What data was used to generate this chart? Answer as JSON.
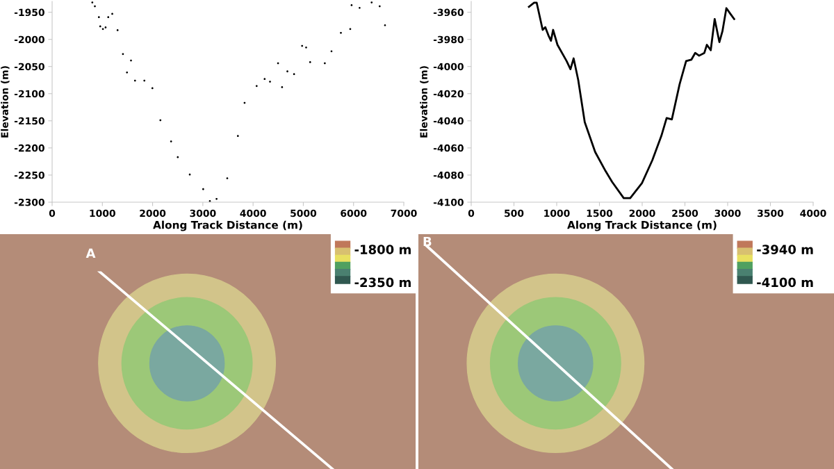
{
  "chart_data": [
    {
      "type": "scatter",
      "xlabel": "Along Track Distance (m)",
      "ylabel": "Elevation (m)",
      "marker": "circle",
      "grid": false,
      "legend": false,
      "xlim": [
        0,
        7000
      ],
      "xticks": [
        0,
        1000,
        2000,
        3000,
        4000,
        5000,
        6000,
        7000
      ],
      "ylim": [
        -2300,
        -1930
      ],
      "yticks": [
        -2300,
        -2250,
        -2200,
        -2150,
        -2100,
        -2050,
        -2000,
        -1950
      ],
      "series": [
        {
          "color": "#000000",
          "x": [
            800,
            851,
            931,
            958,
            1011,
            1064,
            1117,
            1197,
            1303,
            1410,
            1490,
            1570,
            1650,
            1836,
            1996,
            2155,
            2368,
            2501,
            2740,
            3007,
            3140,
            3273,
            3486,
            3698,
            3831,
            4071,
            4230,
            4337,
            4497,
            4577,
            4683,
            4816,
            4976,
            5056,
            5136,
            5428,
            5561,
            5748,
            5934,
            5961,
            6120,
            6360,
            6520,
            6626
          ],
          "values": [
            -1932,
            -1939,
            -1959,
            -1976,
            -1981,
            -1978,
            -1959,
            -1953,
            -1983,
            -2027,
            -2061,
            -2039,
            -2076,
            -2076,
            -2090,
            -2149,
            -2188,
            -2217,
            -2249,
            -2276,
            -2298,
            -2294,
            -2256,
            -2178,
            -2117,
            -2086,
            -2073,
            -2078,
            -2044,
            -2088,
            -2059,
            -2064,
            -2012,
            -2015,
            -2042,
            -2044,
            -2022,
            -1988,
            -1981,
            -1937,
            -1942,
            -1932,
            -1939,
            -1974
          ]
        }
      ]
    },
    {
      "type": "line",
      "xlabel": "Along Track Distance (m)",
      "ylabel": "Elevation (m)",
      "marker": "none",
      "line_style": "solid",
      "grid": false,
      "legend": false,
      "xlim": [
        0,
        4000
      ],
      "xticks": [
        0,
        500,
        1000,
        1500,
        2000,
        2500,
        3000,
        3500,
        4000
      ],
      "ylim": [
        -4100,
        -3952
      ],
      "yticks": [
        -4100,
        -4080,
        -4060,
        -4040,
        -4020,
        -4000,
        -3980,
        -3960
      ],
      "series": [
        {
          "color": "#000000",
          "x": [
            675,
            736,
            766,
            836,
            866,
            903,
            933,
            958,
            1009,
            1116,
            1161,
            1198,
            1252,
            1328,
            1450,
            1571,
            1648,
            1784,
            1860,
            1997,
            2119,
            2225,
            2286,
            2347,
            2438,
            2514,
            2575,
            2620,
            2666,
            2727,
            2757,
            2802,
            2848,
            2903,
            2939,
            2985,
            3030,
            3076
          ],
          "values": [
            -3956,
            -3953,
            -3953,
            -3973,
            -3971,
            -3977,
            -3981,
            -3973,
            -3984,
            -3996,
            -4002,
            -3994,
            -4010,
            -4041,
            -4063,
            -4077,
            -4085,
            -4097,
            -4097,
            -4086,
            -4069,
            -4051,
            -4038,
            -4039,
            -4013,
            -3996,
            -3995,
            -3990,
            -3992,
            -3990,
            -3984,
            -3988,
            -3965,
            -3982,
            -3974,
            -3957,
            -3961,
            -3965
          ]
        }
      ]
    },
    {
      "type": "other",
      "annotations": [
        "A",
        "-1800 m",
        "-2350 m"
      ]
    },
    {
      "type": "other",
      "annotations": [
        "B",
        "-3940 m",
        "-4100 m"
      ]
    }
  ]
}
